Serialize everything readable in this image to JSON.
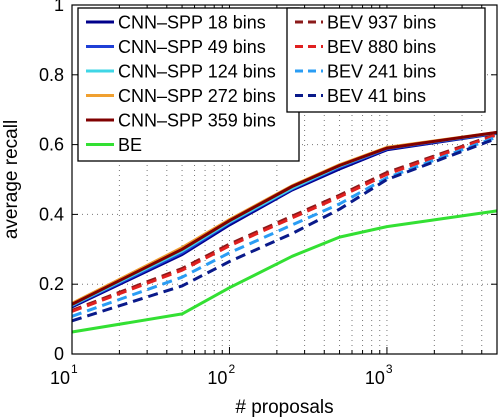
{
  "chart_data": {
    "type": "line",
    "xlabel": "# proposals",
    "ylabel": "average recall",
    "x_scale": "log",
    "xlim": [
      10,
      5000
    ],
    "ylim": [
      0,
      1
    ],
    "grid": true,
    "grid_style": "dotted",
    "legend_placement": "top-left",
    "x_ticks": [
      {
        "base": "10",
        "exp": "1",
        "value": 10
      },
      {
        "base": "10",
        "exp": "2",
        "value": 100
      },
      {
        "base": "10",
        "exp": "3",
        "value": 1000
      }
    ],
    "y_ticks": [
      {
        "label": "0",
        "value": 0
      },
      {
        "label": "0.2",
        "value": 0.2
      },
      {
        "label": "0.4",
        "value": 0.4
      },
      {
        "label": "0.6",
        "value": 0.6
      },
      {
        "label": "0.8",
        "value": 0.8
      },
      {
        "label": "1",
        "value": 1
      }
    ],
    "series": [
      {
        "name": "CNN–SPP 18 bins",
        "color": "#00008b",
        "dash": "solid",
        "x": [
          10,
          50,
          100,
          250,
          500,
          1000,
          5000
        ],
        "y": [
          0.135,
          0.285,
          0.37,
          0.47,
          0.53,
          0.585,
          0.632
        ]
      },
      {
        "name": "CNN–SPP 49 bins",
        "color": "#1f3fd6",
        "dash": "solid",
        "x": [
          10,
          50,
          100,
          250,
          500,
          1000,
          5000
        ],
        "y": [
          0.138,
          0.29,
          0.375,
          0.473,
          0.535,
          0.588,
          0.633
        ]
      },
      {
        "name": "CNN–SPP 124 bins",
        "color": "#3fd6e6",
        "dash": "solid",
        "x": [
          10,
          50,
          100,
          250,
          500,
          1000,
          5000
        ],
        "y": [
          0.14,
          0.295,
          0.378,
          0.475,
          0.538,
          0.59,
          0.634
        ]
      },
      {
        "name": "CNN–SPP 272 bins",
        "color": "#f0a030",
        "dash": "solid",
        "x": [
          10,
          50,
          100,
          250,
          500,
          1000,
          5000
        ],
        "y": [
          0.145,
          0.305,
          0.385,
          0.482,
          0.542,
          0.592,
          0.635
        ]
      },
      {
        "name": "CNN–SPP 359 bins",
        "color": "#800000",
        "dash": "solid",
        "x": [
          10,
          50,
          100,
          250,
          500,
          1000,
          5000
        ],
        "y": [
          0.142,
          0.3,
          0.382,
          0.48,
          0.54,
          0.59,
          0.635
        ]
      },
      {
        "name": "BE",
        "color": "#33e033",
        "dash": "solid",
        "x": [
          10,
          50,
          100,
          250,
          500,
          1000,
          5000
        ],
        "y": [
          0.063,
          0.115,
          0.19,
          0.28,
          0.335,
          0.365,
          0.41
        ]
      },
      {
        "name": "BEV 937 bins",
        "color": "#8b1a1a",
        "dash": "dashed",
        "x": [
          10,
          50,
          100,
          250,
          500,
          1000,
          5000
        ],
        "y": [
          0.125,
          0.245,
          0.315,
          0.395,
          0.455,
          0.52,
          0.63
        ]
      },
      {
        "name": "BEV 880 bins",
        "color": "#e02020",
        "dash": "dashed",
        "x": [
          10,
          50,
          100,
          250,
          500,
          1000,
          5000
        ],
        "y": [
          0.122,
          0.24,
          0.31,
          0.39,
          0.45,
          0.515,
          0.628
        ]
      },
      {
        "name": "BEV 241 bins",
        "color": "#2a9df4",
        "dash": "dashed",
        "x": [
          10,
          50,
          100,
          250,
          500,
          1000,
          5000
        ],
        "y": [
          0.108,
          0.22,
          0.29,
          0.37,
          0.43,
          0.505,
          0.622
        ]
      },
      {
        "name": "BEV 41 bins",
        "color": "#0a1a8a",
        "dash": "dashed",
        "x": [
          10,
          50,
          100,
          250,
          500,
          1000,
          5000
        ],
        "y": [
          0.095,
          0.195,
          0.265,
          0.345,
          0.415,
          0.5,
          0.618
        ]
      }
    ],
    "legend_columns": [
      [
        0,
        1,
        2,
        3,
        4,
        5
      ],
      [
        6,
        7,
        8,
        9
      ]
    ]
  }
}
